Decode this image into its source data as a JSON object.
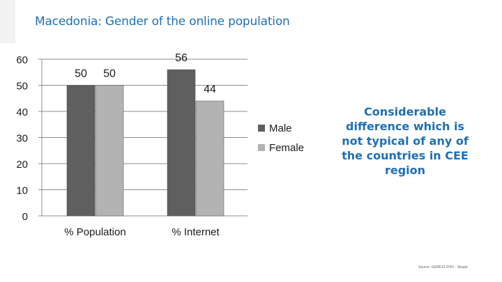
{
  "header": {
    "title": "Macedonia: Gender of the online population"
  },
  "annotation": {
    "text": "Considerable difference which is not typical of any of the countries in CEE region"
  },
  "source": {
    "text": "Source: GEMIUS DOO - Skopje"
  },
  "colors": {
    "male": "#5f5f5f",
    "female": "#b3b3b3",
    "title": "#1f6fb2"
  },
  "chart_data": {
    "type": "bar",
    "title": "",
    "xlabel": "",
    "ylabel": "",
    "categories": [
      "% Population",
      "% Internet"
    ],
    "series": [
      {
        "name": "Male",
        "values": [
          50,
          56
        ]
      },
      {
        "name": "Female",
        "values": [
          50,
          44
        ]
      }
    ],
    "ylim": [
      0,
      60
    ],
    "yticks": [
      0,
      10,
      20,
      30,
      40,
      50,
      60
    ],
    "grid": true,
    "legend": "right",
    "data_labels": true
  }
}
